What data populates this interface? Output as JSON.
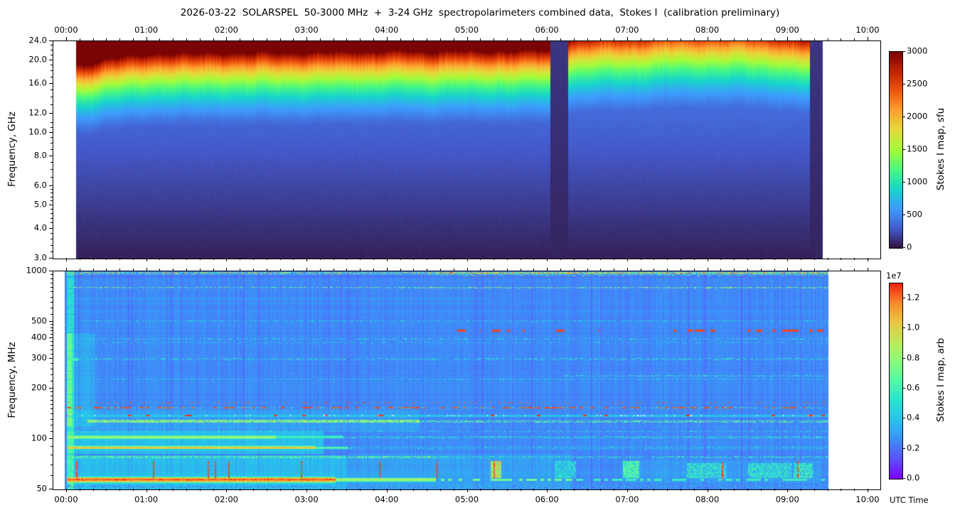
{
  "figure": {
    "title": "2026-03-22  SOLARSPEL  50-3000 MHz  +  3-24 GHz  spectropolarimeters combined data,  Stokes I  (calibration preliminary)",
    "background": "#ffffff",
    "xlabel": "UTC Time",
    "x_tick_labels": [
      "00:00",
      "01:00",
      "02:00",
      "03:00",
      "04:00",
      "05:00",
      "06:00",
      "07:00",
      "08:00",
      "09:00",
      "10:00"
    ],
    "x_major_hours": [
      0,
      1,
      2,
      3,
      4,
      5,
      6,
      7,
      8,
      9,
      10
    ],
    "x_minor_step_min": 10
  },
  "chart_data": [
    {
      "id": "ghz_panel",
      "type": "heatmap",
      "instrument": "3-24 GHz spectropolarimeter",
      "ylabel": "Frequency, GHz",
      "yscale": "log",
      "ylim": [
        3,
        24
      ],
      "ytick_values": [
        3,
        4,
        5,
        6,
        8,
        10,
        12,
        16,
        20,
        24
      ],
      "ytick_labels": [
        "3.0",
        "4.0",
        "5.0",
        "6.0",
        "8.0",
        "10.0",
        "12.0",
        "16.0",
        "20.0",
        "24.0"
      ],
      "yminor_values": [
        3.2,
        3.4,
        3.6,
        3.8,
        4.2,
        4.4,
        4.6,
        4.8,
        5.2,
        5.4,
        5.6,
        5.8,
        6.5,
        7,
        7.5,
        8.5,
        9,
        9.5,
        10.5,
        11,
        13,
        14,
        15,
        17,
        18,
        19,
        21,
        22,
        23
      ],
      "colormap": "turbo",
      "colorbar": {
        "label": "Stokes I map, sfu",
        "vmin": 0,
        "vmax": 3000,
        "tick_values": [
          0,
          500,
          1000,
          1500,
          2000,
          2500,
          3000
        ],
        "tick_labels": [
          "0",
          "500",
          "1000",
          "1500",
          "2000",
          "2500",
          "3000"
        ]
      },
      "time_coverage_h": [
        0.115,
        9.43
      ],
      "gaps_h": [
        [
          6.03,
          6.25
        ]
      ],
      "low_signal_bands_h": [
        [
          9.27,
          9.43
        ]
      ],
      "spectrum_model": {
        "comment": "v = max(m(t)*u^5, floor_a+floor_b*u), u = normalized log-frequency (3->24 GHz), v*3000 = sfu",
        "gamma": 5,
        "floor_a": 0.02,
        "floor_b": 0.155,
        "gap_level": 0.03,
        "brightness_keypoints": [
          [
            0.12,
            1.78
          ],
          [
            0.3,
            1.72
          ],
          [
            0.5,
            1.55
          ],
          [
            0.8,
            1.42
          ],
          [
            1.1,
            1.33
          ],
          [
            1.5,
            1.36
          ],
          [
            1.9,
            1.3
          ],
          [
            2.3,
            1.34
          ],
          [
            2.7,
            1.29
          ],
          [
            3.0,
            1.33
          ],
          [
            3.3,
            1.3
          ],
          [
            3.6,
            1.26
          ],
          [
            3.9,
            1.3
          ],
          [
            4.2,
            1.26
          ],
          [
            4.5,
            1.29
          ],
          [
            4.8,
            1.25
          ],
          [
            5.1,
            1.28
          ],
          [
            5.4,
            1.24
          ],
          [
            5.7,
            1.26
          ],
          [
            6.0,
            1.24
          ],
          [
            6.28,
            0.92
          ],
          [
            6.6,
            0.89
          ],
          [
            7.0,
            0.86
          ],
          [
            7.5,
            0.81
          ],
          [
            8.0,
            0.79
          ],
          [
            8.5,
            0.81
          ],
          [
            8.9,
            0.85
          ],
          [
            9.1,
            0.91
          ],
          [
            9.26,
            0.95
          ]
        ]
      }
    },
    {
      "id": "mhz_panel",
      "type": "heatmap",
      "instrument": "SOLARSPEL 50-3000 MHz",
      "ylabel": "Frequency, MHz",
      "yscale": "log",
      "ylim": [
        50,
        1000
      ],
      "ytick_values": [
        50,
        100,
        200,
        300,
        400,
        500,
        1000
      ],
      "ytick_labels": [
        "50",
        "100",
        "200",
        "300",
        "400",
        "500",
        "1000"
      ],
      "yminor_values": [
        60,
        70,
        80,
        90,
        110,
        120,
        130,
        140,
        150,
        160,
        170,
        180,
        190,
        220,
        240,
        260,
        280,
        320,
        340,
        360,
        380,
        420,
        440,
        460,
        480,
        550,
        600,
        650,
        700,
        750,
        800,
        850,
        900,
        950
      ],
      "colormap": "rainbow",
      "colorbar": {
        "label": "Stokes I map, arb",
        "offset_text": "1e7",
        "vmin": 0,
        "vmax": 1.3,
        "tick_values": [
          0.0,
          0.2,
          0.4,
          0.6,
          0.8,
          1.0,
          1.2
        ],
        "tick_labels": [
          "0.0",
          "0.2",
          "0.4",
          "0.6",
          "0.8",
          "1.0",
          "1.2"
        ]
      },
      "time_coverage_h": [
        -0.03,
        9.5
      ],
      "background_level": 0.195,
      "zones": [
        {
          "f": [
            50,
            80
          ],
          "t": [
            0,
            3.5
          ],
          "dv": 0.09
        },
        {
          "f": [
            50,
            82
          ],
          "t": [
            3.5,
            6.3
          ],
          "dv": 0.04
        },
        {
          "f": [
            82,
            112
          ],
          "t": [
            0,
            3.2
          ],
          "dv": 0.1
        },
        {
          "f": [
            112,
            150
          ],
          "t": [
            0,
            4.4
          ],
          "dv": 0.04
        },
        {
          "f": [
            120,
            430
          ],
          "t": [
            0,
            0.35
          ],
          "dv": 0.05
        },
        {
          "f": [
            55,
            75
          ],
          "t": [
            6.9,
            9.4
          ],
          "dv": 0.03
        }
      ],
      "bands": [
        {
          "f": 980,
          "w": 3,
          "t": [
            0,
            4.5
          ],
          "type": "speckle",
          "vr": [
            0.25,
            0.95
          ],
          "d": 0.5
        },
        {
          "f": 980,
          "w": 3,
          "t": [
            4.5,
            9.5
          ],
          "type": "speckle",
          "vr": [
            0.3,
            1.0
          ],
          "d": 0.85
        },
        {
          "f": 950,
          "w": 2,
          "t": [
            4.5,
            9.5
          ],
          "type": "speckle",
          "vr": [
            0.25,
            0.6
          ],
          "d": 0.3
        },
        {
          "f": 930,
          "w": 1,
          "t": [
            0,
            9.5
          ],
          "type": "line",
          "v": 0.06,
          "a": 0.55
        },
        {
          "f": 800,
          "w": 2,
          "t": [
            0,
            9.5
          ],
          "type": "speckle",
          "vr": [
            0.3,
            0.8
          ],
          "d": 0.45
        },
        {
          "f": 800,
          "w": 1,
          "t": [
            0,
            4
          ],
          "type": "line",
          "v": 0.1,
          "a": 0.4
        },
        {
          "f": 690,
          "w": 1,
          "t": [
            0,
            5.2
          ],
          "type": "line",
          "v": 0.32,
          "a": 0.55
        },
        {
          "f": 620,
          "w": 1,
          "t": [
            0,
            9.5
          ],
          "type": "line",
          "v": 0.13,
          "a": 0.35
        },
        {
          "f": 560,
          "w": 1,
          "t": [
            0,
            9.5
          ],
          "type": "line",
          "v": 0.13,
          "a": 0.3
        },
        {
          "f": 510,
          "w": 2,
          "t": [
            0,
            9.5
          ],
          "type": "speckle",
          "vr": [
            0.28,
            0.42
          ],
          "d": 0.35
        },
        {
          "f": 480,
          "w": 1,
          "t": [
            0,
            9.5
          ],
          "type": "line",
          "v": 0.14,
          "a": 0.3
        },
        {
          "f": 443,
          "w": 3,
          "type": "clusters",
          "v": 0.97,
          "clusters": [
            [
              4.87,
              5.01
            ],
            [
              5.13,
              5.16
            ],
            [
              5.3,
              5.41
            ],
            [
              5.49,
              5.52
            ],
            [
              5.67,
              5.71
            ],
            [
              6.1,
              6.21
            ],
            [
              6.63,
              6.65
            ],
            [
              7.56,
              7.6
            ],
            [
              7.67,
              7.8
            ],
            [
              7.83,
              8.09
            ],
            [
              8.47,
              8.67
            ],
            [
              8.8,
              8.84
            ],
            [
              8.92,
              9.13
            ],
            [
              9.26,
              9.3
            ],
            [
              9.36,
              9.44
            ]
          ]
        },
        {
          "f": 430,
          "w": 1,
          "t": [
            0,
            9.5
          ],
          "type": "line",
          "v": 0.13,
          "a": 0.3
        },
        {
          "f": 398,
          "w": 2,
          "t": [
            0,
            9.5
          ],
          "type": "speckle",
          "vr": [
            0.28,
            0.45
          ],
          "d": 0.3
        },
        {
          "f": 380,
          "w": 2,
          "t": [
            0,
            9.5
          ],
          "type": "speckle",
          "vr": [
            0.26,
            0.4
          ],
          "d": 0.25
        },
        {
          "f": 340,
          "w": 1,
          "t": [
            0,
            9.5
          ],
          "type": "line",
          "v": 0.13,
          "a": 0.3
        },
        {
          "f": 300,
          "w": 3,
          "t": [
            0,
            9.5
          ],
          "type": "speckle",
          "vr": [
            0.27,
            0.5
          ],
          "d": 0.3
        },
        {
          "f": 300,
          "w": 4,
          "t": [
            0.03,
            0.14
          ],
          "type": "solid",
          "v": 0.5,
          "a": 0.8
        },
        {
          "f": 255,
          "w": 1,
          "t": [
            0,
            9.5
          ],
          "type": "line",
          "v": 0.12,
          "a": 0.35
        },
        {
          "f": 240,
          "w": 2,
          "t": [
            6.2,
            9.5
          ],
          "type": "speckle",
          "vr": [
            0.3,
            0.5
          ],
          "d": 0.4
        },
        {
          "f": 228,
          "w": 2,
          "t": [
            0,
            9.5
          ],
          "type": "speckle",
          "vr": [
            0.27,
            0.42
          ],
          "d": 0.3
        },
        {
          "f": 215,
          "w": 1,
          "t": [
            0,
            9.5
          ],
          "type": "line",
          "v": 0.12,
          "a": 0.3
        },
        {
          "f": 185,
          "w": 1,
          "t": [
            0,
            9.5
          ],
          "type": "line",
          "v": 0.12,
          "a": 0.35
        },
        {
          "f": 166,
          "w": 2,
          "t": [
            0,
            9.45
          ],
          "type": "dots",
          "v": 0.97,
          "d": 0.16
        },
        {
          "f": 154,
          "w": 2,
          "t": [
            0,
            9.45
          ],
          "type": "dashes",
          "v": 0.97,
          "d": 0.5
        },
        {
          "f": 154,
          "w": 2,
          "t": [
            0,
            9.45
          ],
          "type": "speckle",
          "vr": [
            0.3,
            0.5
          ],
          "d": 0.25
        },
        {
          "f": 138,
          "w": 3,
          "t": [
            0,
            9.5
          ],
          "type": "solid",
          "v": 0.34,
          "a": 0.75
        },
        {
          "f": 138,
          "w": 2,
          "t": [
            0,
            9.5
          ],
          "type": "dashes",
          "v": 0.98,
          "d": 0.07
        },
        {
          "f": 138,
          "w": 2,
          "t": [
            0,
            9.5
          ],
          "type": "white",
          "d": 0.04
        },
        {
          "f": 128,
          "w": 4,
          "t": [
            0.25,
            4.4
          ],
          "type": "speckle",
          "vr": [
            0.5,
            0.72
          ],
          "d": 0.8
        },
        {
          "f": 128,
          "w": 3,
          "t": [
            4.4,
            9.5
          ],
          "type": "speckle",
          "vr": [
            0.4,
            0.62
          ],
          "d": 0.5
        },
        {
          "f": 112,
          "w": 2,
          "t": [
            0,
            9.5
          ],
          "type": "speckle",
          "vr": [
            0.3,
            0.45
          ],
          "d": 0.3
        },
        {
          "f": 103,
          "w": 5,
          "t": [
            0,
            2.6
          ],
          "type": "glow",
          "v": 0.68,
          "halo": 0.45
        },
        {
          "f": 103,
          "w": 4,
          "t": [
            2.6,
            3.45
          ],
          "type": "glow",
          "v": 0.5,
          "halo": 0.35
        },
        {
          "f": 103,
          "w": 3,
          "t": [
            3.45,
            9.5
          ],
          "type": "speckle",
          "vr": [
            0.3,
            0.45
          ],
          "d": 0.45
        },
        {
          "f": 89,
          "w": 4,
          "t": [
            0,
            3.1
          ],
          "type": "glow",
          "v": 0.86,
          "halo": 0.6
        },
        {
          "f": 89,
          "w": 3,
          "t": [
            3.1,
            3.5
          ],
          "type": "glow",
          "v": 0.55,
          "halo": 0.4
        },
        {
          "f": 89,
          "w": 3,
          "t": [
            3.5,
            9.5
          ],
          "type": "speckle",
          "vr": [
            0.28,
            0.42
          ],
          "d": 0.35
        },
        {
          "f": 78,
          "w": 3,
          "t": [
            0,
            4.6
          ],
          "type": "speckle",
          "vr": [
            0.42,
            0.6
          ],
          "d": 0.6
        },
        {
          "f": 78,
          "w": 3,
          "t": [
            4.6,
            9.5
          ],
          "type": "speckle",
          "vr": [
            0.32,
            0.5
          ],
          "d": 0.4
        },
        {
          "f": 64,
          "w": 1,
          "t": [
            0,
            9.5
          ],
          "type": "line",
          "v": 0.3,
          "a": 0.4
        },
        {
          "f": 57.5,
          "w": 7,
          "t": [
            0,
            3.35
          ],
          "type": "glow",
          "v": 0.97,
          "halo": 0.72
        },
        {
          "f": 57.5,
          "w": 5,
          "t": [
            3.35,
            4.6
          ],
          "type": "glow",
          "v": 0.7,
          "halo": 0.5
        },
        {
          "f": 57.5,
          "w": 3,
          "t": [
            4.6,
            6.3
          ],
          "type": "dashes",
          "v": 0.55,
          "d": 0.6
        },
        {
          "f": 57.5,
          "w": 3,
          "t": [
            6.3,
            9.5
          ],
          "type": "dashes",
          "v": 0.45,
          "d": 0.5
        },
        {
          "f": 52,
          "w": 4,
          "t": [
            0,
            9.5
          ],
          "type": "speckle",
          "vr": [
            0.08,
            0.38
          ],
          "d": 0.45
        }
      ],
      "events": {
        "start_stripe": {
          "t": [
            0.0,
            0.08
          ],
          "f": [
            50,
            1000
          ],
          "dv": 0.2,
          "core": {
            "t": [
              0.0,
              0.06
            ],
            "f": [
              120,
              430
            ],
            "dv": 0.12
          }
        },
        "red_bursts": {
          "f": [
            59,
            74
          ],
          "times_h": [
            0.12,
            1.08,
            1.76,
            1.85,
            2.02,
            2.92,
            3.9,
            4.62,
            5.33,
            8.18,
            9.12
          ],
          "v": 0.97
        },
        "blobs": [
          {
            "t": [
              5.28,
              5.42
            ],
            "f": [
              57,
              74
            ],
            "v": 0.8
          },
          {
            "t": [
              6.93,
              7.14
            ],
            "f": [
              57,
              75
            ],
            "v": 0.55
          }
        ],
        "cyan_patches": [
          {
            "t": [
              6.08,
              6.35
            ],
            "f": [
              58,
              78
            ],
            "v": 0.38
          },
          {
            "t": [
              7.73,
              8.22
            ],
            "f": [
              56,
              72
            ],
            "v": 0.42
          },
          {
            "t": [
              8.5,
              9.04
            ],
            "f": [
              56,
              72
            ],
            "v": 0.42
          },
          {
            "t": [
              9.06,
              9.3
            ],
            "f": [
              56,
              72
            ],
            "v": 0.45
          }
        ]
      }
    }
  ]
}
